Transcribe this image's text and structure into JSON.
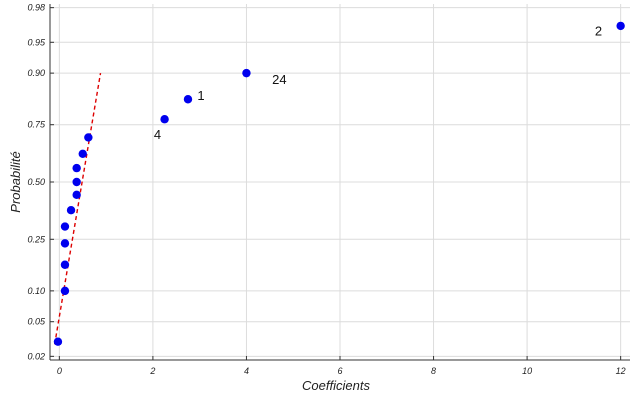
{
  "chart_data": {
    "type": "scatter",
    "title": "",
    "xlabel": "Coefficients",
    "ylabel": "Probabilité",
    "xlim": [
      -0.2,
      12.2
    ],
    "ylim": [
      0.018,
      0.982
    ],
    "y_scale": "normal-probability",
    "grid": true,
    "x_ticks": [
      0,
      2,
      4,
      6,
      8,
      10,
      12
    ],
    "x_tick_labels": [
      "0",
      "2",
      "4",
      "6",
      "8",
      "10",
      "12"
    ],
    "y_ticks": [
      0.02,
      0.05,
      0.1,
      0.25,
      0.5,
      0.75,
      0.9,
      0.95,
      0.98
    ],
    "y_tick_labels": [
      "0.02",
      "0.05",
      "0.10",
      "0.25",
      "0.50",
      "0.75",
      "0.90",
      "0.95",
      "0.98"
    ],
    "points": [
      {
        "x": -0.03,
        "y": 0.03
      },
      {
        "x": 0.12,
        "y": 0.1
      },
      {
        "x": 0.12,
        "y": 0.165
      },
      {
        "x": 0.12,
        "y": 0.235
      },
      {
        "x": 0.12,
        "y": 0.3
      },
      {
        "x": 0.25,
        "y": 0.37
      },
      {
        "x": 0.37,
        "y": 0.44
      },
      {
        "x": 0.37,
        "y": 0.5
      },
      {
        "x": 0.37,
        "y": 0.565
      },
      {
        "x": 0.5,
        "y": 0.63
      },
      {
        "x": 0.62,
        "y": 0.7
      },
      {
        "x": 2.25,
        "y": 0.77
      },
      {
        "x": 2.75,
        "y": 0.835
      },
      {
        "x": 4.0,
        "y": 0.9
      },
      {
        "x": 12.0,
        "y": 0.967
      }
    ],
    "fit_line": [
      {
        "x": -0.1,
        "y": 0.028
      },
      {
        "x": 0.88,
        "y": 0.9
      }
    ],
    "point_color": "#0000ee",
    "line_color": "#dd0000",
    "annotations": [
      {
        "text": "4",
        "x": 2.02,
        "y": 0.71
      },
      {
        "text": "1",
        "x": 2.95,
        "y": 0.845
      },
      {
        "text": "24",
        "x": 4.55,
        "y": 0.885
      },
      {
        "text": "2",
        "x": 11.45,
        "y": 0.962
      }
    ]
  }
}
